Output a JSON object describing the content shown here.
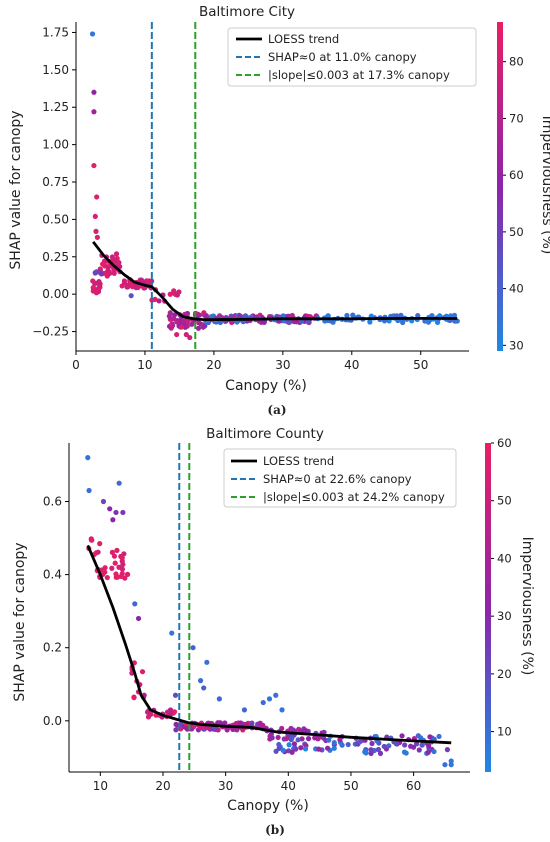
{
  "chart_data": [
    {
      "type": "scatter",
      "caption": "(a)",
      "title": "Baltimore City",
      "xlabel": "Canopy (%)",
      "ylabel": "SHAP value for canopy",
      "colorbar_label": "Imperviousness (%)",
      "xlim": [
        0,
        57
      ],
      "ylim": [
        -0.38,
        1.82
      ],
      "xticks": [
        0,
        10,
        20,
        30,
        40,
        50
      ],
      "yticks": [
        -0.25,
        0.0,
        0.25,
        0.5,
        0.75,
        1.0,
        1.25,
        1.5,
        1.75
      ],
      "ytick_labels": [
        "−0.25",
        "0.00",
        "0.25",
        "0.50",
        "0.75",
        "1.00",
        "1.25",
        "1.50",
        "1.75"
      ],
      "colorbar_range": [
        29,
        87
      ],
      "colorbar_ticks": [
        30,
        40,
        50,
        60,
        70,
        80
      ],
      "legend_position": "top-right",
      "legend": [
        "LOESS trend",
        "SHAP≈0 at 11.0% canopy",
        "|slope|≤0.003 at 17.3% canopy"
      ],
      "vlines": [
        {
          "x": 11.0,
          "color": "#1f77b4",
          "label": "SHAP≈0 at 11.0% canopy"
        },
        {
          "x": 17.3,
          "color": "#2ca02c",
          "label": "|slope|≤0.003 at 17.3% canopy"
        }
      ],
      "trend": {
        "name": "LOESS trend",
        "x": [
          2.5,
          4,
          5.5,
          7,
          8.5,
          10,
          11,
          12.5,
          14,
          15.5,
          17,
          18.5,
          20,
          25,
          30,
          35,
          40,
          45,
          50,
          55.3
        ],
        "y": [
          0.35,
          0.26,
          0.19,
          0.13,
          0.08,
          0.06,
          0.05,
          -0.02,
          -0.1,
          -0.15,
          -0.165,
          -0.17,
          -0.17,
          -0.168,
          -0.165,
          -0.165,
          -0.165,
          -0.163,
          -0.162,
          -0.163
        ]
      },
      "clusters": [
        {
          "x": [
            2.2,
            3.5
          ],
          "y": [
            0.0,
            0.1
          ],
          "n": 18,
          "c": [
            75,
            86
          ]
        },
        {
          "x": [
            3.5,
            6.5
          ],
          "y": [
            0.12,
            0.27
          ],
          "n": 40,
          "c": [
            72,
            86
          ]
        },
        {
          "x": [
            2.4,
            4
          ],
          "y": [
            0.13,
            0.15
          ],
          "n": 5,
          "c": [
            45,
            55
          ]
        },
        {
          "x": [
            6.5,
            11
          ],
          "y": [
            0.04,
            0.1
          ],
          "n": 40,
          "c": [
            70,
            86
          ]
        },
        {
          "x": [
            11,
            15
          ],
          "y": [
            -0.05,
            0.05
          ],
          "n": 12,
          "c": [
            65,
            85
          ]
        },
        {
          "x": [
            13.5,
            19
          ],
          "y": [
            -0.23,
            -0.12
          ],
          "n": 50,
          "c": [
            55,
            80
          ]
        },
        {
          "x": [
            19,
            35
          ],
          "y": [
            -0.19,
            -0.14
          ],
          "n": 130,
          "c": [
            30,
            80
          ]
        },
        {
          "x": [
            35,
            55.5
          ],
          "y": [
            -0.19,
            -0.14
          ],
          "n": 80,
          "c": [
            29,
            40
          ]
        }
      ],
      "extra_points": [
        {
          "x": 2.4,
          "y": 1.74,
          "c": 34
        },
        {
          "x": 2.6,
          "y": 1.35,
          "c": 60
        },
        {
          "x": 2.6,
          "y": 1.22,
          "c": 64
        },
        {
          "x": 2.6,
          "y": 0.86,
          "c": 84
        },
        {
          "x": 3.0,
          "y": 0.65,
          "c": 82
        },
        {
          "x": 2.8,
          "y": 0.52,
          "c": 80
        },
        {
          "x": 2.9,
          "y": 0.42,
          "c": 82
        },
        {
          "x": 3.1,
          "y": 0.38,
          "c": 84
        },
        {
          "x": 8.0,
          "y": -0.01,
          "c": 45
        },
        {
          "x": 16.0,
          "y": -0.27,
          "c": 80
        },
        {
          "x": 16.5,
          "y": -0.29,
          "c": 78
        },
        {
          "x": 14.6,
          "y": -0.27,
          "c": 82
        },
        {
          "x": 15.3,
          "y": -0.22,
          "c": 84
        },
        {
          "x": 55.3,
          "y": -0.18,
          "c": 35
        }
      ]
    },
    {
      "type": "scatter",
      "caption": "(b)",
      "title": "Baltimore County",
      "xlabel": "Canopy (%)",
      "ylabel": "SHAP value for canopy",
      "colorbar_label": "Imperviousness (%)",
      "xlim": [
        5,
        69
      ],
      "ylim": [
        -0.14,
        0.76
      ],
      "xticks": [
        10,
        20,
        30,
        40,
        50,
        60
      ],
      "yticks": [
        0.0,
        0.2,
        0.4,
        0.6
      ],
      "ytick_labels": [
        "0.0",
        "0.2",
        "0.4",
        "0.6"
      ],
      "colorbar_range": [
        3,
        60
      ],
      "colorbar_ticks": [
        10,
        20,
        30,
        40,
        50,
        60
      ],
      "legend_position": "top-right",
      "legend": [
        "LOESS trend",
        "SHAP≈0 at 22.6% canopy",
        "|slope|≤0.003 at 24.2% canopy"
      ],
      "vlines": [
        {
          "x": 22.6,
          "color": "#1f77b4",
          "label": "SHAP≈0 at 22.6% canopy"
        },
        {
          "x": 24.2,
          "color": "#2ca02c",
          "label": "|slope|≤0.003 at 24.2% canopy"
        }
      ],
      "trend": {
        "name": "LOESS trend",
        "x": [
          8,
          10,
          12,
          14,
          15.5,
          16.5,
          18,
          20,
          22,
          24,
          26,
          30,
          34,
          38,
          42,
          46,
          50,
          55,
          60,
          66
        ],
        "y": [
          0.48,
          0.4,
          0.31,
          0.21,
          0.13,
          0.07,
          0.03,
          0.015,
          0.005,
          -0.005,
          -0.01,
          -0.015,
          -0.018,
          -0.03,
          -0.035,
          -0.04,
          -0.045,
          -0.05,
          -0.055,
          -0.06
        ]
      },
      "clusters": [
        {
          "x": [
            8,
            10
          ],
          "y": [
            0.44,
            0.5
          ],
          "n": 8,
          "c": [
            52,
            60
          ]
        },
        {
          "x": [
            9.5,
            14.5
          ],
          "y": [
            0.39,
            0.43
          ],
          "n": 20,
          "c": [
            52,
            60
          ]
        },
        {
          "x": [
            11,
            14
          ],
          "y": [
            0.43,
            0.47
          ],
          "n": 8,
          "c": [
            50,
            60
          ]
        },
        {
          "x": [
            15,
            17
          ],
          "y": [
            0.06,
            0.17
          ],
          "n": 12,
          "c": [
            48,
            60
          ]
        },
        {
          "x": [
            17,
            22
          ],
          "y": [
            0.01,
            0.03
          ],
          "n": 20,
          "c": [
            40,
            60
          ]
        },
        {
          "x": [
            22,
            36
          ],
          "y": [
            -0.025,
            -0.005
          ],
          "n": 100,
          "c": [
            20,
            60
          ]
        },
        {
          "x": [
            36,
            46
          ],
          "y": [
            -0.05,
            -0.02
          ],
          "n": 40,
          "c": [
            20,
            45
          ]
        },
        {
          "x": [
            38,
            66
          ],
          "y": [
            -0.09,
            -0.04
          ],
          "n": 100,
          "c": [
            3,
            40
          ]
        }
      ],
      "extra_points": [
        {
          "x": 8.0,
          "y": 0.72,
          "c": 8
        },
        {
          "x": 8.2,
          "y": 0.63,
          "c": 10
        },
        {
          "x": 10.5,
          "y": 0.6,
          "c": 22
        },
        {
          "x": 11.5,
          "y": 0.58,
          "c": 30
        },
        {
          "x": 12.5,
          "y": 0.57,
          "c": 28
        },
        {
          "x": 13.0,
          "y": 0.65,
          "c": 12
        },
        {
          "x": 13.6,
          "y": 0.57,
          "c": 26
        },
        {
          "x": 12.0,
          "y": 0.55,
          "c": 32
        },
        {
          "x": 15.5,
          "y": 0.32,
          "c": 12
        },
        {
          "x": 16.1,
          "y": 0.28,
          "c": 30
        },
        {
          "x": 17.0,
          "y": 0.07,
          "c": 40
        },
        {
          "x": 21.4,
          "y": 0.24,
          "c": 8
        },
        {
          "x": 22.0,
          "y": 0.07,
          "c": 20
        },
        {
          "x": 24.8,
          "y": 0.2,
          "c": 14
        },
        {
          "x": 26.0,
          "y": 0.11,
          "c": 10
        },
        {
          "x": 27.0,
          "y": 0.16,
          "c": 10
        },
        {
          "x": 26.5,
          "y": 0.09,
          "c": 14
        },
        {
          "x": 29.0,
          "y": 0.06,
          "c": 12
        },
        {
          "x": 33.0,
          "y": 0.03,
          "c": 12
        },
        {
          "x": 36.0,
          "y": 0.05,
          "c": 12
        },
        {
          "x": 37.0,
          "y": 0.06,
          "c": 8
        },
        {
          "x": 38.0,
          "y": 0.07,
          "c": 10
        },
        {
          "x": 39.0,
          "y": 0.03,
          "c": 8
        },
        {
          "x": 66.0,
          "y": -0.11,
          "c": 8
        },
        {
          "x": 65.0,
          "y": -0.12,
          "c": 10
        },
        {
          "x": 66.0,
          "y": -0.12,
          "c": 8
        }
      ]
    }
  ]
}
